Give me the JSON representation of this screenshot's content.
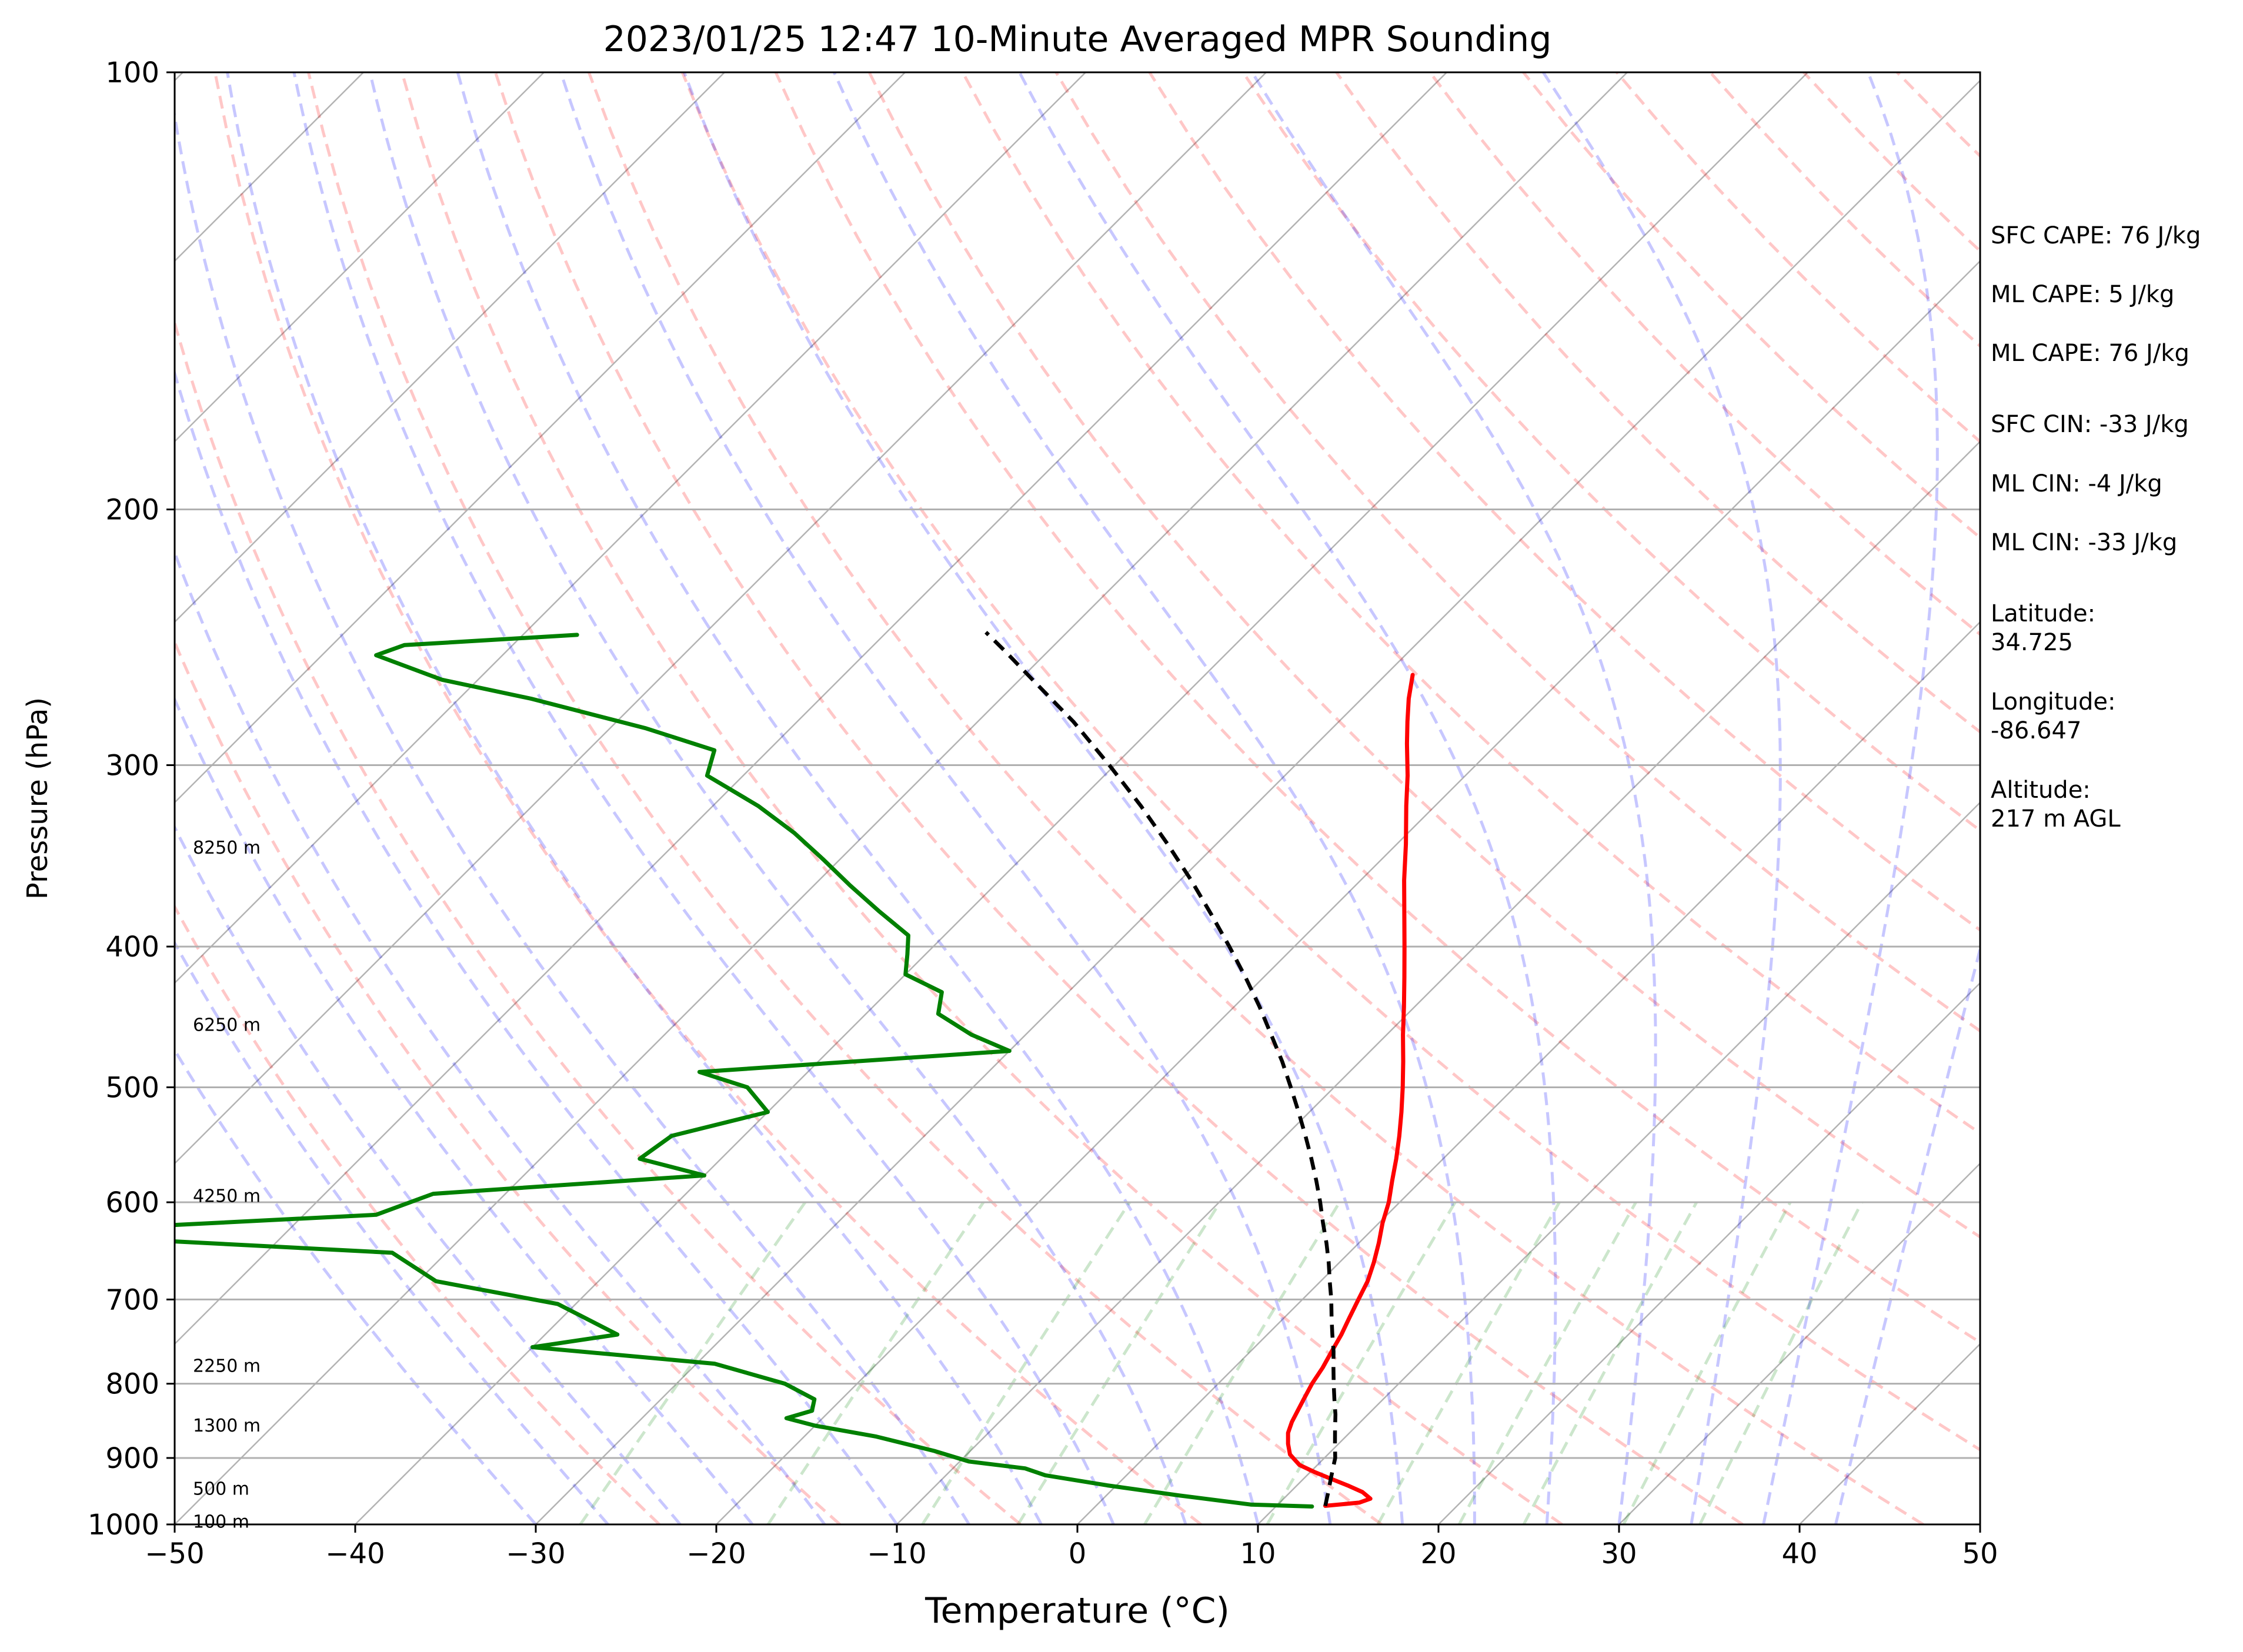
{
  "chart_data": {
    "type": "line",
    "subtype": "skew-t log-p sounding",
    "title": "2023/01/25 12:47 10-Minute Averaged MPR Sounding",
    "xlabel": "Temperature (°C)",
    "ylabel": "Pressure (hPa)",
    "xlim": [
      -50,
      50
    ],
    "ylim": [
      1000,
      100
    ],
    "y_scale": "log",
    "x_ticks": [
      "−50",
      "−40",
      "−30",
      "−20",
      "−10",
      "0",
      "10",
      "20",
      "30",
      "40",
      "50"
    ],
    "y_ticks": [
      {
        "p": 100,
        "label": "100"
      },
      {
        "p": 200,
        "label": "200"
      },
      {
        "p": 300,
        "label": "300"
      },
      {
        "p": 400,
        "label": "400"
      },
      {
        "p": 500,
        "label": "500"
      },
      {
        "p": 600,
        "label": "600"
      },
      {
        "p": 700,
        "label": "700"
      },
      {
        "p": 800,
        "label": "800"
      },
      {
        "p": 900,
        "label": "900"
      },
      {
        "p": 1000,
        "label": "1000"
      }
    ],
    "grid": true,
    "height_labels": [
      {
        "p": 996,
        "label": "100 m"
      },
      {
        "p": 945,
        "label": "500 m"
      },
      {
        "p": 855,
        "label": "1300 m"
      },
      {
        "p": 778,
        "label": "2250 m"
      },
      {
        "p": 594,
        "label": "4250 m"
      },
      {
        "p": 453,
        "label": "6250 m"
      },
      {
        "p": 342,
        "label": "8250 m"
      }
    ],
    "series": [
      {
        "key": "temperature",
        "color": "#ff0000",
        "style": "solid",
        "points": [
          [
            971,
            12.7
          ],
          [
            966,
            14.4
          ],
          [
            960,
            14.8
          ],
          [
            950,
            14.0
          ],
          [
            940,
            12.8
          ],
          [
            930,
            11.5
          ],
          [
            920,
            10.2
          ],
          [
            910,
            9.0
          ],
          [
            895,
            7.9
          ],
          [
            880,
            7.2
          ],
          [
            865,
            6.6
          ],
          [
            850,
            6.2
          ],
          [
            835,
            5.9
          ],
          [
            820,
            5.6
          ],
          [
            800,
            5.2
          ],
          [
            780,
            4.9
          ],
          [
            760,
            4.5
          ],
          [
            740,
            4.1
          ],
          [
            720,
            3.6
          ],
          [
            700,
            3.1
          ],
          [
            680,
            2.6
          ],
          [
            660,
            1.9
          ],
          [
            640,
            1.1
          ],
          [
            620,
            0.2
          ],
          [
            600,
            -0.6
          ],
          [
            580,
            -1.6
          ],
          [
            560,
            -2.6
          ],
          [
            540,
            -3.7
          ],
          [
            520,
            -4.9
          ],
          [
            500,
            -6.2
          ],
          [
            480,
            -7.6
          ],
          [
            460,
            -9.1
          ],
          [
            440,
            -10.6
          ],
          [
            420,
            -12.2
          ],
          [
            400,
            -13.9
          ],
          [
            380,
            -15.7
          ],
          [
            360,
            -17.6
          ],
          [
            340,
            -19.5
          ],
          [
            320,
            -21.6
          ],
          [
            305,
            -23.2
          ],
          [
            290,
            -25.0
          ],
          [
            280,
            -26.2
          ],
          [
            270,
            -27.4
          ],
          [
            260,
            -28.5
          ]
        ]
      },
      {
        "key": "dewpoint",
        "color": "#008000",
        "style": "solid",
        "points": [
          [
            972,
            12.0
          ],
          [
            969,
            8.5
          ],
          [
            955,
            4.0
          ],
          [
            940,
            -0.5
          ],
          [
            925,
            -4.5
          ],
          [
            915,
            -6.0
          ],
          [
            905,
            -9.5
          ],
          [
            890,
            -12.0
          ],
          [
            870,
            -16.0
          ],
          [
            855,
            -20.0
          ],
          [
            845,
            -22.0
          ],
          [
            835,
            -21.0
          ],
          [
            820,
            -21.5
          ],
          [
            800,
            -24.0
          ],
          [
            775,
            -29.0
          ],
          [
            755,
            -40.0
          ],
          [
            740,
            -36.0
          ],
          [
            705,
            -41.0
          ],
          [
            680,
            -49.0
          ],
          [
            650,
            -53.0
          ],
          [
            630,
            -75.0
          ],
          [
            612,
            -56.0
          ],
          [
            592,
            -54.0
          ],
          [
            575,
            -40.0
          ],
          [
            560,
            -44.5
          ],
          [
            540,
            -44.0
          ],
          [
            520,
            -40.0
          ],
          [
            500,
            -42.5
          ],
          [
            488,
            -46.0
          ],
          [
            472,
            -30.0
          ],
          [
            460,
            -33.0
          ],
          [
            445,
            -36.0
          ],
          [
            430,
            -37.0
          ],
          [
            418,
            -40.0
          ],
          [
            405,
            -41.0
          ],
          [
            393,
            -42.0
          ],
          [
            378,
            -45.0
          ],
          [
            363,
            -48.0
          ],
          [
            348,
            -51.0
          ],
          [
            334,
            -54.0
          ],
          [
            320,
            -57.5
          ],
          [
            305,
            -62.0
          ],
          [
            293,
            -63.0
          ],
          [
            283,
            -68.0
          ],
          [
            270,
            -76.0
          ],
          [
            262,
            -82.0
          ],
          [
            252,
            -87.0
          ],
          [
            248,
            -86.0
          ],
          [
            244,
            -77.0
          ]
        ]
      },
      {
        "key": "parcel",
        "color": "#000000",
        "style": "dashed",
        "points": [
          [
            971,
            12.7
          ],
          [
            950,
            12.1
          ],
          [
            930,
            11.5
          ],
          [
            910,
            10.9
          ],
          [
            900,
            10.6
          ],
          [
            880,
            9.8
          ],
          [
            860,
            9.0
          ],
          [
            840,
            8.2
          ],
          [
            820,
            7.3
          ],
          [
            800,
            6.4
          ],
          [
            780,
            5.5
          ],
          [
            760,
            4.6
          ],
          [
            740,
            3.6
          ],
          [
            720,
            2.6
          ],
          [
            700,
            1.6
          ],
          [
            680,
            0.5
          ],
          [
            660,
            -0.6
          ],
          [
            640,
            -1.8
          ],
          [
            620,
            -3.1
          ],
          [
            600,
            -4.4
          ],
          [
            580,
            -5.8
          ],
          [
            560,
            -7.3
          ],
          [
            540,
            -8.9
          ],
          [
            520,
            -10.6
          ],
          [
            500,
            -12.4
          ],
          [
            480,
            -14.3
          ],
          [
            460,
            -16.4
          ],
          [
            440,
            -18.6
          ],
          [
            420,
            -21.0
          ],
          [
            400,
            -23.6
          ],
          [
            380,
            -26.4
          ],
          [
            360,
            -29.4
          ],
          [
            340,
            -32.7
          ],
          [
            320,
            -36.3
          ],
          [
            300,
            -40.3
          ],
          [
            280,
            -44.7
          ],
          [
            265,
            -48.5
          ],
          [
            250,
            -52.5
          ],
          [
            243,
            -54.5
          ]
        ]
      }
    ],
    "background_lines": {
      "isotherms": {
        "color": "#808080",
        "style": "solid"
      },
      "dry_adiabats": {
        "color": "#ff0000",
        "style": "dashed"
      },
      "moist_adiabats": {
        "color": "#0000ff",
        "style": "dashed"
      },
      "mixing_ratio": {
        "color": "#008000",
        "style": "dashed"
      }
    }
  },
  "info_panel": {
    "sfc_cape": "SFC CAPE: 76 J/kg",
    "ml_cape_1": "ML CAPE: 5 J/kg",
    "ml_cape_2": "ML CAPE: 76 J/kg",
    "sfc_cin": "SFC CIN: -33 J/kg",
    "ml_cin_1": "ML CIN: -4 J/kg",
    "ml_cin_2": "ML CIN: -33 J/kg",
    "latitude_label": "Latitude:",
    "latitude_value": "34.725",
    "longitude_label": "Longitude:",
    "longitude_value": "-86.647",
    "altitude_label": "Altitude:",
    "altitude_value": "217 m AGL"
  }
}
